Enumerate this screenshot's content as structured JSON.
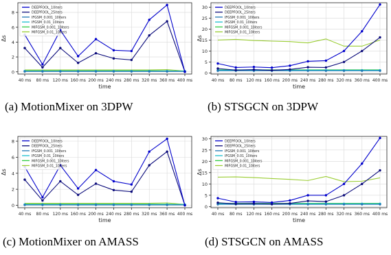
{
  "legend_labels": [
    "DEEPFOOL_10iters",
    "DEEPFOOL_25iters",
    "IFGSM_0.001_10iters",
    "IFGSM_0.01_10iters",
    "MIFGSM_0.001_10iters",
    "MIFGSM_0.01_10iters"
  ],
  "colors": {
    "DEEPFOOL_10iters": "#0000cc",
    "DEEPFOOL_25iters": "#0a0a7a",
    "IFGSM_0.001_10iters": "#1f77b4",
    "IFGSM_0.01_10iters": "#17becf",
    "MIFGSM_0.001_10iters": "#2ecc40",
    "MIFGSM_0.01_10iters": "#9acd32"
  },
  "chart_data": [
    {
      "type": "line",
      "caption": "(a) MotionMixer on 3DPW",
      "xlabel": "time",
      "ylabel": "Δs",
      "categories": [
        "40 ms",
        "80 ms",
        "120 ms",
        "160 ms",
        "200 ms",
        "240 ms",
        "280 ms",
        "320 ms",
        "360 ms",
        "400 ms"
      ],
      "ylim": [
        -0.3,
        9.3
      ],
      "yticks": [
        0,
        2,
        4,
        6,
        8
      ],
      "grid": true,
      "legend_position": "top-left",
      "series": [
        {
          "name": "DEEPFOOL_10iters",
          "values": [
            5.0,
            1.0,
            5.6,
            2.1,
            4.4,
            2.9,
            2.8,
            7.0,
            9.0,
            0.0
          ]
        },
        {
          "name": "DEEPFOOL_25iters",
          "values": [
            3.2,
            0.6,
            3.2,
            1.2,
            2.5,
            1.8,
            1.6,
            4.9,
            6.8,
            0.0
          ]
        },
        {
          "name": "IFGSM_0.001_10iters",
          "values": [
            0.05,
            0.05,
            0.05,
            0.05,
            0.05,
            0.05,
            0.05,
            0.05,
            0.05,
            0.05
          ]
        },
        {
          "name": "IFGSM_0.01_10iters",
          "values": [
            0.1,
            0.1,
            0.1,
            0.1,
            0.1,
            0.1,
            0.1,
            0.1,
            0.1,
            0.1
          ]
        },
        {
          "name": "MIFGSM_0.001_10iters",
          "values": [
            0.15,
            0.15,
            0.15,
            0.15,
            0.15,
            0.15,
            0.15,
            0.15,
            0.15,
            0.1
          ]
        },
        {
          "name": "MIFGSM_0.01_10iters",
          "values": [
            0.25,
            0.25,
            0.25,
            0.25,
            0.25,
            0.25,
            0.25,
            0.25,
            0.3,
            0.1
          ]
        }
      ]
    },
    {
      "type": "line",
      "caption": "(b) STSGCN on 3DPW",
      "xlabel": "time",
      "ylabel": "Δs",
      "categories": [
        "40 ms",
        "80 ms",
        "120 ms",
        "160 ms",
        "200 ms",
        "240 ms",
        "280 ms",
        "320 ms",
        "360 ms",
        "400 ms"
      ],
      "ylim": [
        -0.5,
        32
      ],
      "yticks": [
        0,
        5,
        10,
        15,
        20,
        25,
        30
      ],
      "grid": true,
      "legend_position": "top-left",
      "series": [
        {
          "name": "DEEPFOOL_10iters",
          "values": [
            4.3,
            2.5,
            2.7,
            2.4,
            3.3,
            5.3,
            5.6,
            10.0,
            19.0,
            31.2
          ]
        },
        {
          "name": "DEEPFOOL_25iters",
          "values": [
            2.0,
            1.3,
            1.5,
            1.2,
            1.6,
            2.6,
            2.5,
            5.0,
            10.0,
            16.2
          ]
        },
        {
          "name": "IFGSM_0.001_10iters",
          "values": [
            1.0,
            1.0,
            1.0,
            1.0,
            1.0,
            1.0,
            1.0,
            1.0,
            1.0,
            1.0
          ]
        },
        {
          "name": "IFGSM_0.01_10iters",
          "values": [
            1.2,
            1.2,
            1.2,
            1.2,
            1.2,
            1.2,
            1.2,
            1.2,
            1.2,
            1.2
          ]
        },
        {
          "name": "MIFGSM_0.001_10iters",
          "values": [
            1.4,
            1.4,
            1.4,
            1.4,
            1.4,
            1.4,
            1.4,
            1.4,
            1.4,
            1.4
          ]
        },
        {
          "name": "MIFGSM_0.01_10iters",
          "values": [
            15.0,
            15.3,
            14.8,
            14.5,
            14.3,
            13.7,
            15.5,
            12.2,
            12.2,
            15.0
          ]
        }
      ]
    },
    {
      "type": "line",
      "caption": "(c) MotionMixer on AMASS",
      "xlabel": "time",
      "ylabel": "Δs",
      "categories": [
        "40 ms",
        "80 ms",
        "120 ms",
        "160 ms",
        "200 ms",
        "240 ms",
        "280 ms",
        "320 ms",
        "360 ms",
        "400 ms"
      ],
      "ylim": [
        -0.3,
        8.6
      ],
      "yticks": [
        0,
        2,
        4,
        6,
        8
      ],
      "grid": true,
      "legend_position": "top-left",
      "series": [
        {
          "name": "DEEPFOOL_10iters",
          "values": [
            4.8,
            1.0,
            5.0,
            2.1,
            4.4,
            3.0,
            2.6,
            6.7,
            8.3,
            0.0
          ]
        },
        {
          "name": "DEEPFOOL_25iters",
          "values": [
            3.2,
            0.6,
            3.0,
            1.3,
            2.7,
            1.9,
            1.7,
            5.0,
            6.7,
            0.0
          ]
        },
        {
          "name": "IFGSM_0.001_10iters",
          "values": [
            0.05,
            0.05,
            0.05,
            0.05,
            0.05,
            0.05,
            0.05,
            0.05,
            0.05,
            0.05
          ]
        },
        {
          "name": "IFGSM_0.01_10iters",
          "values": [
            0.1,
            0.1,
            0.1,
            0.1,
            0.1,
            0.1,
            0.1,
            0.1,
            0.1,
            0.1
          ]
        },
        {
          "name": "MIFGSM_0.001_10iters",
          "values": [
            0.15,
            0.15,
            0.15,
            0.15,
            0.15,
            0.15,
            0.15,
            0.15,
            0.15,
            0.1
          ]
        },
        {
          "name": "MIFGSM_0.01_10iters",
          "values": [
            0.25,
            0.25,
            0.25,
            0.25,
            0.25,
            0.25,
            0.25,
            0.25,
            0.3,
            0.1
          ]
        }
      ]
    },
    {
      "type": "line",
      "caption": "(d) STSGCN on AMASS",
      "xlabel": "time",
      "ylabel": "Δs",
      "categories": [
        "40 ms",
        "80 ms",
        "120 ms",
        "160 ms",
        "200 ms",
        "240 ms",
        "280 ms",
        "320 ms",
        "360 ms",
        "400 ms"
      ],
      "ylim": [
        -0.5,
        31
      ],
      "yticks": [
        0,
        5,
        10,
        15,
        20,
        25,
        30
      ],
      "grid": true,
      "legend_position": "top-left",
      "series": [
        {
          "name": "DEEPFOOL_10iters",
          "values": [
            3.7,
            2.0,
            2.1,
            1.8,
            2.7,
            5.0,
            5.0,
            10.0,
            19.0,
            30.3
          ]
        },
        {
          "name": "DEEPFOOL_25iters",
          "values": [
            1.7,
            1.2,
            1.3,
            1.1,
            1.4,
            2.5,
            2.2,
            5.0,
            10.0,
            16.0
          ]
        },
        {
          "name": "IFGSM_0.001_10iters",
          "values": [
            1.0,
            1.0,
            1.0,
            1.0,
            1.0,
            1.0,
            1.0,
            1.0,
            1.0,
            1.0
          ]
        },
        {
          "name": "IFGSM_0.01_10iters",
          "values": [
            1.2,
            1.2,
            1.2,
            1.2,
            1.2,
            1.2,
            1.2,
            1.2,
            1.2,
            1.2
          ]
        },
        {
          "name": "MIFGSM_0.001_10iters",
          "values": [
            1.4,
            1.4,
            1.4,
            1.4,
            1.4,
            1.4,
            1.4,
            1.4,
            1.4,
            1.4
          ]
        },
        {
          "name": "MIFGSM_0.01_10iters",
          "values": [
            13.0,
            13.1,
            12.8,
            12.4,
            12.0,
            11.5,
            13.3,
            11.0,
            11.2,
            12.7
          ]
        }
      ]
    }
  ]
}
